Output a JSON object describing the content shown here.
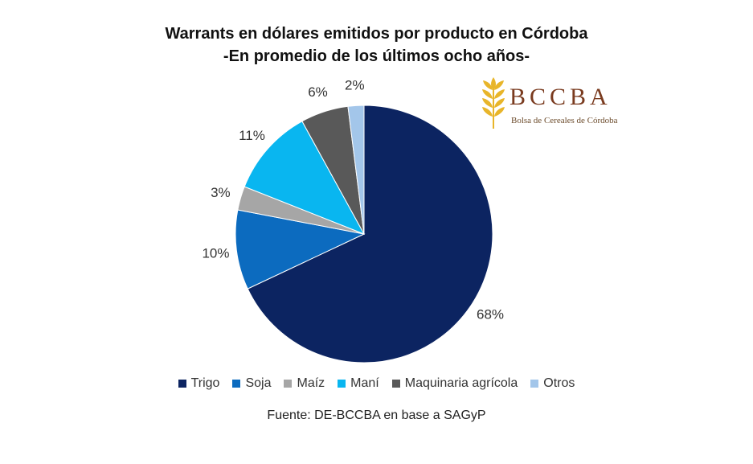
{
  "chart_data": {
    "type": "pie",
    "title": "Warrants en dólares emitidos por producto en Córdoba",
    "subtitle": "-En promedio de los últimos ocho años-",
    "categories": [
      "Trigo",
      "Soja",
      "Maíz",
      "Maní",
      "Maquinaria agrícola",
      "Otros"
    ],
    "values": [
      68,
      10,
      3,
      11,
      6,
      2
    ],
    "labels": [
      "68%",
      "10%",
      "3%",
      "11%",
      "6%",
      "2%"
    ],
    "colors": [
      "#0c2461",
      "#0c6bbf",
      "#a6a6a6",
      "#09b6f0",
      "#595959",
      "#a3c6ea"
    ],
    "legend_position": "bottom",
    "start": "12 o'clock, clockwise"
  },
  "source": "Fuente: DE-BCCBA en base a SAGyP",
  "logo": {
    "name": "BCCBA",
    "subtitle": "Bolsa de Cereales de Córdoba",
    "icon": "wheat-icon",
    "color": "#7a3b1f",
    "icon_color": "#e8b52a"
  }
}
